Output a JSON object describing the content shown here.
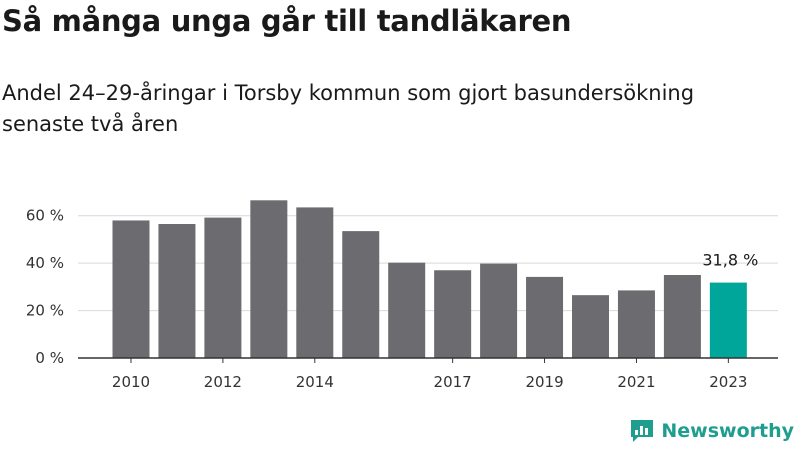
{
  "chart_data": {
    "type": "bar",
    "title": "Så många unga går till tandläkaren",
    "subtitle": "Andel 24–29-åringar i Torsby kommun som gjort basundersökning senaste två åren",
    "categories": [
      "2010",
      "2011",
      "2012",
      "2013",
      "2014",
      "2015",
      "2016",
      "2017",
      "2018",
      "2019",
      "2020",
      "2021",
      "2022",
      "2023"
    ],
    "x_tick_labels": [
      "2010",
      "2012",
      "2014",
      "2017",
      "2019",
      "2021",
      "2023"
    ],
    "values": [
      58.0,
      56.5,
      59.2,
      66.5,
      63.5,
      53.5,
      40.2,
      37.0,
      39.8,
      34.2,
      26.5,
      28.5,
      35.0,
      31.8
    ],
    "highlight": {
      "category": "2023",
      "label": "31,8 %"
    },
    "yticks": [
      "0 %",
      "20 %",
      "40 %",
      "60 %"
    ],
    "ylim": [
      0,
      70
    ],
    "grid": true,
    "colors": {
      "bar": "#6b6b70",
      "highlight": "#00a69a",
      "grid": "#d9d9d9",
      "axis": "#333333"
    }
  },
  "brand": {
    "name": "Newsworthy",
    "icon": "newsworthy-logo-icon",
    "color": "#1f9e8f"
  }
}
